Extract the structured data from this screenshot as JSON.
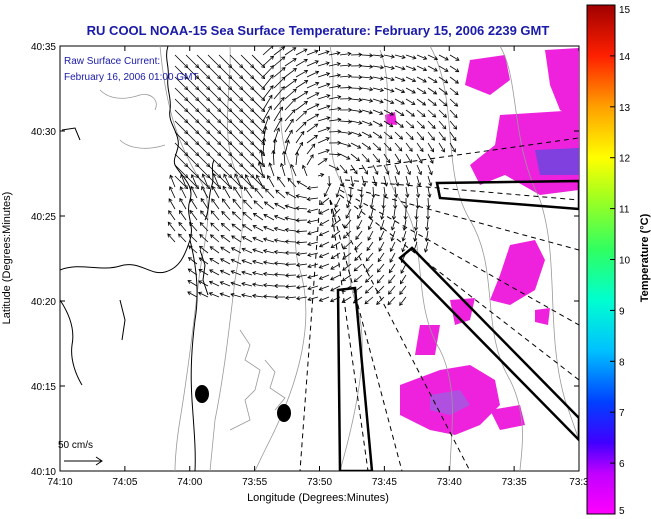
{
  "title": "RU COOL  NOAA-15  Sea Surface Temperature:  February 15, 2006 2239 GMT",
  "inset": {
    "line1": "Raw Surface Current:",
    "line2": "February 16, 2006 01:00 GMT"
  },
  "scale_label": "50 cm/s",
  "axes": {
    "xlabel": "Longitude (Degrees:Minutes)",
    "ylabel": "Latitude (Degrees:Minutes)",
    "xticks": [
      "74:10",
      "74:05",
      "74:00",
      "73:55",
      "73:50",
      "73:45",
      "73:40",
      "73:35",
      "73:3"
    ],
    "yticks": [
      "40:35",
      "40:30",
      "40:25",
      "40:20",
      "40:15",
      "40:10"
    ]
  },
  "colorbar": {
    "label": "Temperature (°C)",
    "ticks": [
      "15",
      "14",
      "13",
      "12",
      "11",
      "10",
      "9",
      "8",
      "7",
      "6",
      "5"
    ],
    "min": 5,
    "max": 15
  },
  "colors": {
    "title": "#1a1aa8",
    "inset": "#1a1aa8",
    "sst_patch": "#ee22dd",
    "land_contour": "#000000",
    "bathymetry": "#999999"
  }
}
